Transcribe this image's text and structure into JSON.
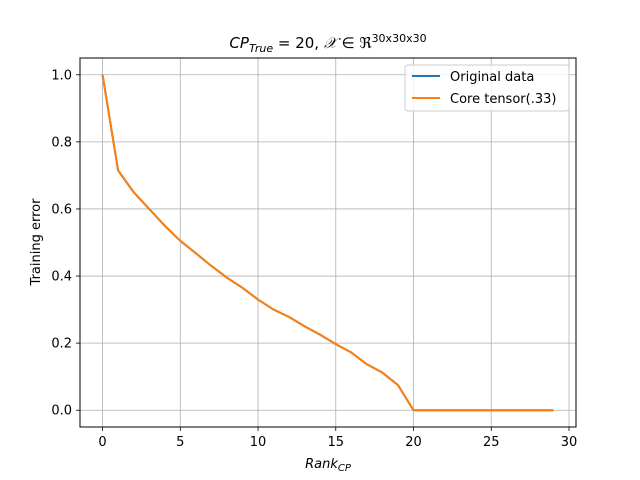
{
  "chart_data": {
    "type": "line",
    "title": {
      "main": "CP",
      "main_sub": "True",
      "rest": " = 20, ",
      "symbol": "𝒳",
      "member": " ∈ ",
      "field": "ℜ",
      "superscript": "30x30x30"
    },
    "xlabel": {
      "main": "Rank",
      "sub": "CP"
    },
    "ylabel": "Training error",
    "xlim": [
      -1.45,
      30.45
    ],
    "ylim": [
      -0.05,
      1.05
    ],
    "xticks": [
      0,
      5,
      10,
      15,
      20,
      25,
      30
    ],
    "yticks": [
      0.0,
      0.2,
      0.4,
      0.6,
      0.8,
      1.0
    ],
    "xtick_labels": [
      "0",
      "5",
      "10",
      "15",
      "20",
      "25",
      "30"
    ],
    "ytick_labels": [
      "0.0",
      "0.2",
      "0.4",
      "0.6",
      "0.8",
      "1.0"
    ],
    "grid": true,
    "legend_position": "top-right",
    "x": [
      0,
      1,
      2,
      3,
      4,
      5,
      6,
      7,
      8,
      9,
      10,
      11,
      12,
      13,
      14,
      15,
      16,
      17,
      18,
      19,
      20,
      21,
      22,
      23,
      24,
      25,
      26,
      27,
      28,
      29
    ],
    "series": [
      {
        "name": "Original data",
        "color": "#1f77b4",
        "values": [
          1.0,
          0.715,
          0.65,
          0.6,
          0.55,
          0.505,
          0.468,
          0.43,
          0.395,
          0.365,
          0.33,
          0.3,
          0.278,
          0.25,
          0.225,
          0.197,
          0.172,
          0.137,
          0.112,
          0.075,
          0.0,
          0.0,
          0.0,
          0.0,
          0.0,
          0.0,
          0.0,
          0.0,
          0.0,
          0.0
        ]
      },
      {
        "name": "Core tensor(.33)",
        "color": "#ff7f0e",
        "values": [
          1.0,
          0.715,
          0.65,
          0.6,
          0.55,
          0.505,
          0.468,
          0.43,
          0.395,
          0.365,
          0.33,
          0.3,
          0.278,
          0.25,
          0.225,
          0.197,
          0.172,
          0.137,
          0.112,
          0.075,
          0.0,
          0.0,
          0.0,
          0.0,
          0.0,
          0.0,
          0.0,
          0.0,
          0.0,
          0.0
        ]
      }
    ]
  }
}
